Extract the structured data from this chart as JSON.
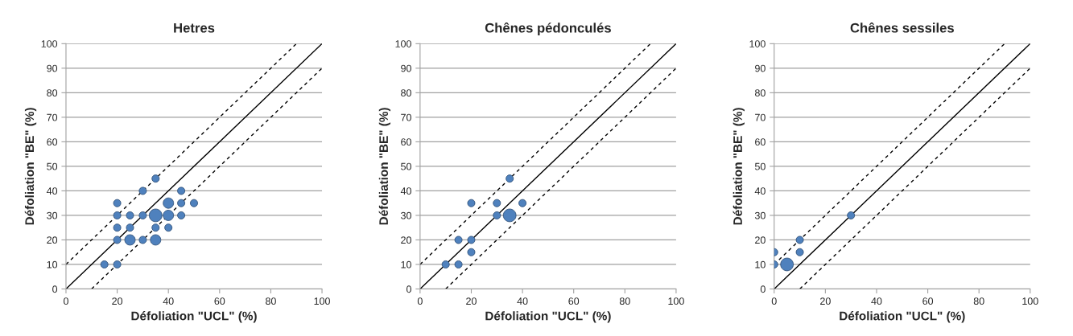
{
  "chart_data": [
    {
      "type": "bubble",
      "title": "Hetres",
      "xlabel": "Défoliation \"UCL\" (%)",
      "ylabel": "Défoliation \"BE\" (%)",
      "xlim": [
        0,
        100
      ],
      "ylim": [
        0,
        100
      ],
      "xticks": [
        0,
        20,
        40,
        60,
        80,
        100
      ],
      "yticks": [
        0,
        10,
        20,
        30,
        40,
        50,
        60,
        70,
        80,
        90,
        100
      ],
      "grid": "y",
      "series": [
        {
          "type": "bubble",
          "color": "#4f81bd",
          "x": [
            35,
            30,
            45,
            20,
            40,
            45,
            50,
            20,
            25,
            30,
            35,
            40,
            45,
            20,
            25,
            35,
            40,
            20,
            25,
            30,
            35,
            15,
            20
          ],
          "values": [
            45,
            40,
            40,
            35,
            35,
            35,
            35,
            30,
            30,
            30,
            30,
            30,
            30,
            25,
            25,
            25,
            25,
            20,
            20,
            20,
            20,
            10,
            10
          ],
          "sizes": [
            0.33,
            0.33,
            0.33,
            0.33,
            0.67,
            0.33,
            0.33,
            0.33,
            0.33,
            0.33,
            1,
            0.67,
            0.33,
            0.33,
            0.33,
            0.33,
            0.33,
            0.33,
            0.67,
            0.33,
            0.67,
            0.33,
            0.33
          ]
        },
        {
          "type": "line",
          "color": "#000000",
          "line_style": "solid",
          "x": [
            0,
            100
          ],
          "values": [
            0,
            100
          ]
        },
        {
          "type": "line",
          "color": "#000000",
          "line_style": "dashed",
          "x": [
            0,
            90
          ],
          "values": [
            10,
            100
          ]
        },
        {
          "type": "line",
          "color": "#000000",
          "line_style": "dashed",
          "x": [
            10,
            100
          ],
          "values": [
            0,
            90
          ]
        }
      ]
    },
    {
      "type": "bubble",
      "title": "Chênes pédonculés",
      "xlabel": "Défoliation \"UCL\" (%)",
      "ylabel": "Défoliation \"BE\" (%)",
      "xlim": [
        0,
        100
      ],
      "ylim": [
        0,
        100
      ],
      "xticks": [
        0,
        20,
        40,
        60,
        80,
        100
      ],
      "yticks": [
        0,
        10,
        20,
        30,
        40,
        50,
        60,
        70,
        80,
        90,
        100
      ],
      "grid": "y",
      "series": [
        {
          "type": "bubble",
          "color": "#4f81bd",
          "x": [
            35,
            20,
            30,
            40,
            30,
            35,
            15,
            20,
            20,
            10,
            15
          ],
          "values": [
            45,
            35,
            35,
            35,
            30,
            30,
            20,
            20,
            15,
            10,
            10
          ],
          "sizes": [
            0.33,
            0.33,
            0.33,
            0.33,
            0.33,
            1,
            0.33,
            0.33,
            0.33,
            0.33,
            0.33
          ]
        },
        {
          "type": "line",
          "color": "#000000",
          "line_style": "solid",
          "x": [
            0,
            100
          ],
          "values": [
            0,
            100
          ]
        },
        {
          "type": "line",
          "color": "#000000",
          "line_style": "dashed",
          "x": [
            0,
            90
          ],
          "values": [
            10,
            100
          ]
        },
        {
          "type": "line",
          "color": "#000000",
          "line_style": "dashed",
          "x": [
            10,
            100
          ],
          "values": [
            0,
            90
          ]
        }
      ]
    },
    {
      "type": "bubble",
      "title": "Chênes sessiles",
      "xlabel": "Défoliation \"UCL\" (%)",
      "ylabel": "Défoliation \"BE\" (%)",
      "xlim": [
        0,
        100
      ],
      "ylim": [
        0,
        100
      ],
      "xticks": [
        0,
        20,
        40,
        60,
        80,
        100
      ],
      "yticks": [
        0,
        10,
        20,
        30,
        40,
        50,
        60,
        70,
        80,
        90,
        100
      ],
      "grid": "y",
      "series": [
        {
          "type": "bubble",
          "color": "#4f81bd",
          "x": [
            0,
            0,
            5,
            10,
            10,
            30
          ],
          "values": [
            15,
            10,
            10,
            20,
            15,
            30
          ],
          "sizes": [
            0.33,
            0.33,
            1,
            0.33,
            0.33,
            0.33
          ]
        },
        {
          "type": "line",
          "color": "#000000",
          "line_style": "solid",
          "x": [
            0,
            100
          ],
          "values": [
            0,
            100
          ]
        },
        {
          "type": "line",
          "color": "#000000",
          "line_style": "dashed",
          "x": [
            0,
            90
          ],
          "values": [
            10,
            100
          ]
        },
        {
          "type": "line",
          "color": "#000000",
          "line_style": "dashed",
          "x": [
            10,
            100
          ],
          "values": [
            0,
            90
          ]
        }
      ]
    }
  ]
}
